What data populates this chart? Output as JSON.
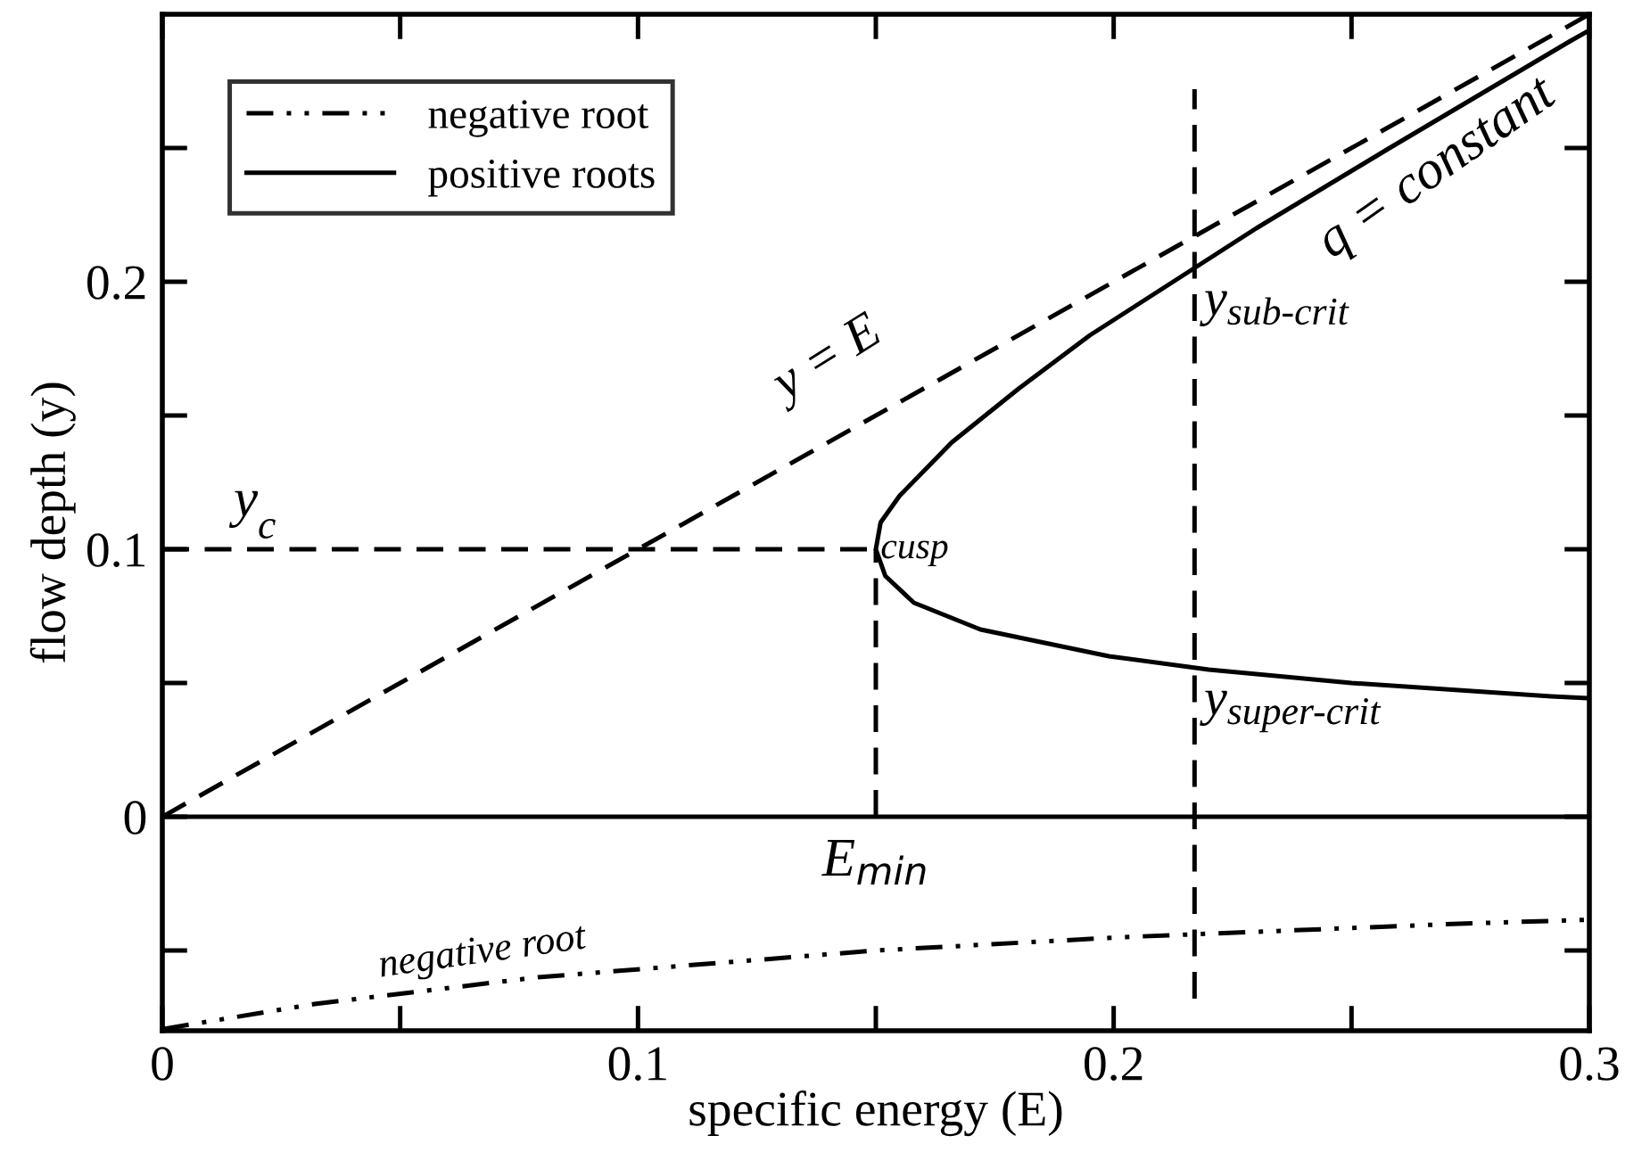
{
  "chart_data": {
    "type": "line",
    "xlabel": "specific energy (E)",
    "ylabel": "flow depth (y)",
    "xlim": [
      0,
      0.3
    ],
    "ylim": [
      -0.08,
      0.3
    ],
    "xticks": [
      0,
      {
        "value": 0.05,
        "label": null
      },
      0.1,
      {
        "value": 0.15,
        "label": null
      },
      0.2,
      {
        "value": 0.25,
        "label": null
      },
      0.3
    ],
    "yticks": [
      {
        "value": -0.05,
        "label": null
      },
      0,
      {
        "value": 0.05,
        "label": null
      },
      0.1,
      {
        "value": 0.15,
        "label": null
      },
      0.2,
      {
        "value": 0.25,
        "label": null
      }
    ],
    "grid": false,
    "legend": "top left",
    "marker": "none",
    "series": [
      {
        "name": "negative root",
        "color": "#000000",
        "line_style": "dashdot",
        "x": [
          0,
          0.032,
          0.079,
          0.15,
          0.202,
          0.2725,
          0.3
        ],
        "values": [
          -0.0794,
          -0.07,
          -0.06,
          -0.05,
          -0.045,
          -0.04,
          -0.0385
        ]
      },
      {
        "name": "positive roots",
        "color": "#000000",
        "line_style": "solid",
        "x": [
          0.3,
          0.292,
          0.25,
          0.22,
          0.199,
          0.172,
          0.158,
          0.152,
          0.15,
          0.151,
          0.155,
          0.166,
          0.18,
          0.195,
          0.2125,
          0.23,
          0.258,
          0.296,
          0.3
        ],
        "values": [
          0.0443,
          0.045,
          0.05,
          0.055,
          0.06,
          0.07,
          0.08,
          0.09,
          0.1,
          0.11,
          0.12,
          0.14,
          0.16,
          0.18,
          0.2,
          0.22,
          0.25,
          0.29,
          0.294
        ]
      },
      {
        "color": "#000000",
        "line_style": "dashed",
        "x": [
          0,
          0.3
        ],
        "values": [
          0,
          0.3
        ]
      },
      {
        "color": "#000000",
        "line_style": "dashed",
        "x": [
          0,
          0.15
        ],
        "values": [
          0.1,
          0.1
        ]
      },
      {
        "color": "#000000",
        "line_style": "dashed",
        "x": [
          0.15,
          0.15
        ],
        "values": [
          0,
          0.1
        ]
      },
      {
        "color": "#000000",
        "line_style": "dashed",
        "x": [
          0.217,
          0.217
        ],
        "values": [
          -0.068,
          0.272
        ]
      }
    ],
    "ref_lines": [
      {
        "axis": "y",
        "value": 0,
        "color": "#000000",
        "line_style": "solid"
      }
    ],
    "annotations": [
      "y = E",
      {
        "text": "q = constant",
        "x": 0.268,
        "y": 0.26
      },
      {
        "text": "y$_{c}$",
        "x": 0.015,
        "y": 0.1
      },
      {
        "text": "cusp",
        "x": 0.15,
        "y": 0.1
      },
      {
        "text": "y$_{sub-crit}$",
        "x": 0.217,
        "y": 0.205
      },
      {
        "text": "y$_{super-crit}$",
        "x": 0.217,
        "y": 0.0556
      },
      {
        "text": "E$_{min}$",
        "x": 0.15,
        "y": 0
      },
      {
        "text": "negative root",
        "x": 0.045,
        "y": -0.065
      }
    ]
  }
}
